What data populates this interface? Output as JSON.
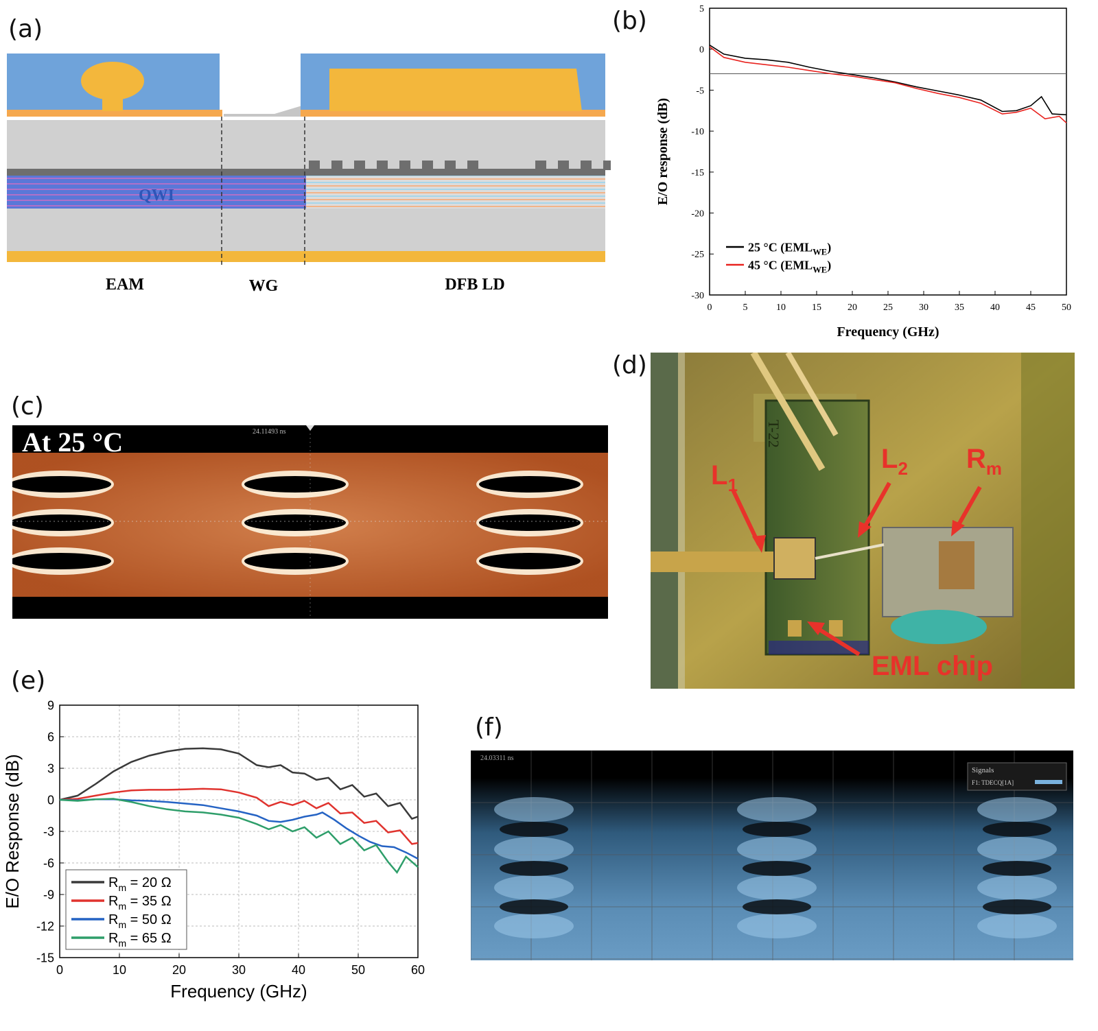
{
  "panel_labels": {
    "a": "(a)",
    "b": "(b)",
    "c": "(c)",
    "d": "(d)",
    "e": "(e)",
    "f": "(f)"
  },
  "schematic": {
    "qwi": "QWI",
    "sections": [
      "EAM",
      "WG",
      "DFB LD"
    ],
    "colors": {
      "blue": "#6fa3da",
      "gold": "#f3b73c",
      "gray": "#d0d0d0",
      "dark": "#6e6e6e",
      "qwi_blue": "#5a78d8"
    }
  },
  "eye_c": {
    "label": "At 25 °C",
    "timestamp": "24.11493 ns",
    "color": "#e0844a"
  },
  "photo_d": {
    "l1": "L",
    "l1_sub": "1",
    "l2": "L",
    "l2_sub": "2",
    "rm": "R",
    "rm_sub": "m",
    "eml": "EML chip",
    "chip_text": "T-22",
    "arrow_color": "#e8322a"
  },
  "eye_f": {
    "timestamp": "24.03311 ns",
    "signals_title": "Signals",
    "signals_entry": "F1: TDECQ[1A]",
    "color": "#7ab2dd"
  },
  "chart_data": [
    {
      "panel": "b",
      "type": "line",
      "xlabel": "Frequency (GHz)",
      "ylabel": "E/O response (dB)",
      "xlim": [
        0,
        50
      ],
      "ylim": [
        -30,
        5
      ],
      "xticks": [
        0,
        5,
        10,
        15,
        20,
        25,
        30,
        35,
        40,
        45,
        50
      ],
      "yticks": [
        5,
        0,
        -5,
        -10,
        -15,
        -20,
        -25,
        -30
      ],
      "reference_line_y": -3,
      "legend_position": "bottom-left",
      "series": [
        {
          "name": "25 °C (EML",
          "name_sub": "WE",
          "name_end": ")",
          "color": "#000000",
          "x": [
            0,
            2,
            5,
            8,
            11,
            14,
            17,
            20,
            23,
            26,
            29,
            32,
            35,
            38,
            41,
            43,
            45,
            46.5,
            48,
            50
          ],
          "y": [
            0.5,
            -0.6,
            -1.1,
            -1.3,
            -1.6,
            -2.2,
            -2.7,
            -3.1,
            -3.5,
            -4.0,
            -4.6,
            -5.1,
            -5.6,
            -6.2,
            -7.6,
            -7.5,
            -6.9,
            -5.8,
            -7.9,
            -8.0
          ]
        },
        {
          "name": "45 °C (EML",
          "name_sub": "WE",
          "name_end": ")",
          "color": "#e8231f",
          "x": [
            0,
            2,
            5,
            8,
            11,
            14,
            17,
            20,
            23,
            26,
            29,
            32,
            35,
            38,
            41,
            43,
            45,
            47,
            49,
            50
          ],
          "y": [
            0.3,
            -1.0,
            -1.6,
            -1.9,
            -2.2,
            -2.6,
            -3.0,
            -3.3,
            -3.7,
            -4.1,
            -4.8,
            -5.4,
            -5.9,
            -6.6,
            -7.9,
            -7.7,
            -7.2,
            -8.5,
            -8.2,
            -9.0
          ]
        }
      ]
    },
    {
      "panel": "e",
      "type": "line",
      "xlabel": "Frequency (GHz)",
      "ylabel": "E/O Response (dB)",
      "xlim": [
        0,
        60
      ],
      "ylim": [
        -15,
        9
      ],
      "xticks": [
        0,
        10,
        20,
        30,
        40,
        50,
        60
      ],
      "yticks": [
        9,
        6,
        3,
        0,
        -3,
        -6,
        -9,
        -12,
        -15
      ],
      "grid": true,
      "legend_position": "bottom-left",
      "series": [
        {
          "name": "R",
          "name_sub": "m",
          "name_end": " = 20 Ω",
          "color": "#3a3a3a",
          "x": [
            0,
            3,
            6,
            9,
            12,
            15,
            18,
            21,
            24,
            27,
            30,
            33,
            35,
            37,
            39,
            41,
            43,
            45,
            47,
            49,
            51,
            53,
            55,
            57,
            59,
            60
          ],
          "y": [
            0,
            0.4,
            1.5,
            2.7,
            3.6,
            4.2,
            4.6,
            4.85,
            4.9,
            4.8,
            4.4,
            3.3,
            3.1,
            3.3,
            2.6,
            2.5,
            1.9,
            2.1,
            1.0,
            1.4,
            0.3,
            0.6,
            -0.6,
            -0.3,
            -1.8,
            -1.6
          ]
        },
        {
          "name": "R",
          "name_sub": "m",
          "name_end": " = 35 Ω",
          "color": "#e0332e",
          "x": [
            0,
            3,
            6,
            9,
            12,
            15,
            18,
            21,
            24,
            27,
            30,
            33,
            35,
            37,
            39,
            41,
            43,
            45,
            47,
            49,
            51,
            53,
            55,
            57,
            59,
            60
          ],
          "y": [
            0,
            0.1,
            0.4,
            0.7,
            0.9,
            0.95,
            0.95,
            1.0,
            1.05,
            1.0,
            0.7,
            0.2,
            -0.6,
            -0.2,
            -0.5,
            -0.1,
            -0.8,
            -0.3,
            -1.3,
            -1.2,
            -2.2,
            -2.0,
            -3.1,
            -2.9,
            -4.2,
            -4.1
          ]
        },
        {
          "name": "R",
          "name_sub": "m",
          "name_end": " = 50 Ω",
          "color": "#2563c4",
          "x": [
            0,
            3,
            6,
            9,
            12,
            15,
            18,
            21,
            24,
            27,
            30,
            33,
            35,
            37,
            39,
            41,
            43,
            44,
            46,
            48,
            50,
            52,
            54,
            56,
            58,
            60
          ],
          "y": [
            0,
            -0.05,
            0.05,
            0.05,
            -0.05,
            -0.1,
            -0.2,
            -0.35,
            -0.5,
            -0.8,
            -1.1,
            -1.5,
            -2.0,
            -2.1,
            -1.9,
            -1.6,
            -1.4,
            -1.2,
            -1.9,
            -2.7,
            -3.4,
            -4.0,
            -4.4,
            -4.5,
            -5.0,
            -5.6
          ]
        },
        {
          "name": "R",
          "name_sub": "m",
          "name_end": " = 65 Ω",
          "color": "#2e9e6a",
          "x": [
            0,
            3,
            6,
            9,
            12,
            15,
            18,
            21,
            24,
            27,
            30,
            33,
            35,
            37,
            39,
            41,
            43,
            45,
            47,
            49,
            51,
            53,
            55,
            56.5,
            58,
            60
          ],
          "y": [
            0,
            -0.1,
            0.05,
            0.1,
            -0.2,
            -0.6,
            -0.9,
            -1.1,
            -1.2,
            -1.4,
            -1.7,
            -2.3,
            -2.8,
            -2.4,
            -3.0,
            -2.6,
            -3.6,
            -3.0,
            -4.2,
            -3.6,
            -4.8,
            -4.3,
            -5.9,
            -6.9,
            -5.4,
            -6.4
          ]
        }
      ]
    }
  ]
}
